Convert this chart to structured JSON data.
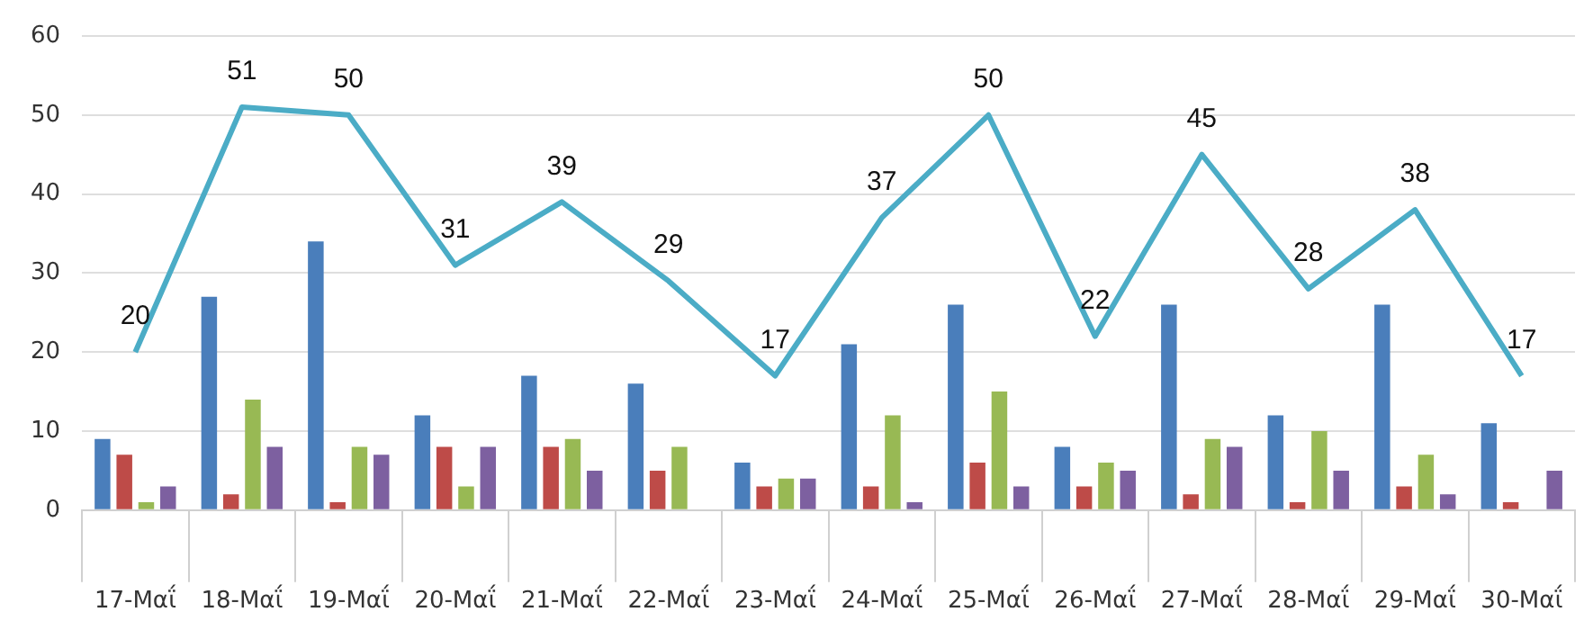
{
  "chart_data": {
    "type": "bar",
    "categories": [
      "17-Μαΐ",
      "18-Μαΐ",
      "19-Μαΐ",
      "20-Μαΐ",
      "21-Μαΐ",
      "22-Μαΐ",
      "23-Μαΐ",
      "24-Μαΐ",
      "25-Μαΐ",
      "26-Μαΐ",
      "27-Μαΐ",
      "28-Μαΐ",
      "29-Μαΐ",
      "30-Μαΐ"
    ],
    "series": [
      {
        "color": "#4a7ebb",
        "values": [
          9,
          27,
          34,
          12,
          17,
          16,
          6,
          21,
          26,
          8,
          26,
          12,
          26,
          11
        ]
      },
      {
        "color": "#be4b48",
        "values": [
          7,
          2,
          1,
          8,
          8,
          5,
          3,
          3,
          6,
          3,
          2,
          1,
          3,
          1
        ]
      },
      {
        "color": "#98b954",
        "values": [
          1,
          14,
          8,
          3,
          9,
          8,
          4,
          12,
          15,
          6,
          9,
          10,
          7,
          0
        ]
      },
      {
        "color": "#7d60a0",
        "values": [
          3,
          8,
          7,
          8,
          5,
          0,
          4,
          1,
          3,
          5,
          8,
          5,
          2,
          5
        ]
      },
      {
        "type": "line",
        "color": "#4bacc6",
        "values": [
          20,
          51,
          50,
          31,
          39,
          29,
          17,
          37,
          50,
          22,
          45,
          28,
          38,
          17
        ],
        "value_labels": [
          "20",
          "51",
          "50",
          "31",
          "39",
          "29",
          "17",
          "37",
          "50",
          "22",
          "45",
          "28",
          "38",
          "17"
        ]
      }
    ],
    "ylim": [
      0,
      60
    ],
    "yticks": [
      0,
      10,
      20,
      30,
      40,
      50,
      60
    ],
    "grid": "y",
    "legend": false,
    "marker": "none"
  }
}
